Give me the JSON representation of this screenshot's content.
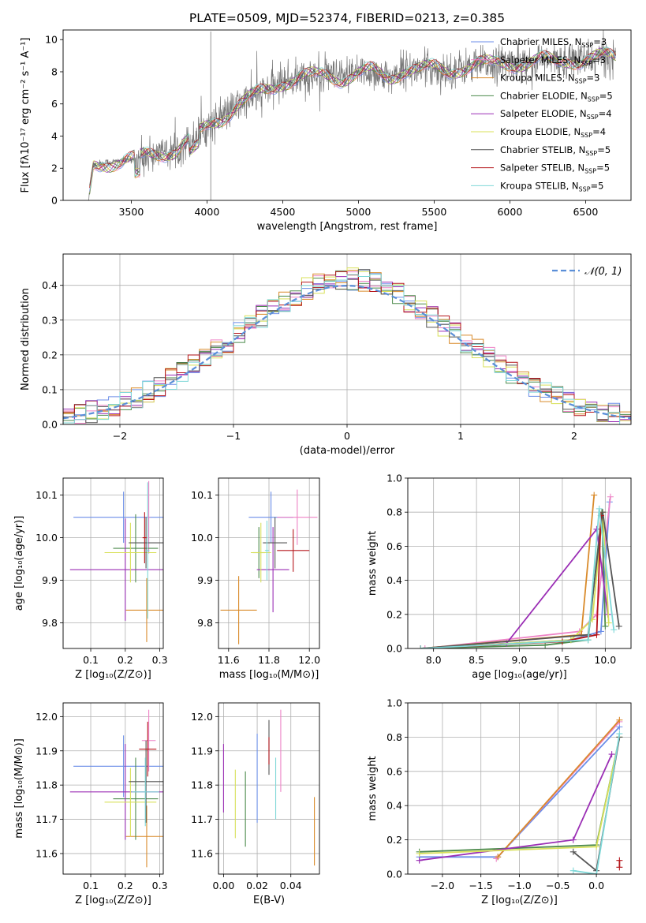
{
  "colors": [
    "#6b8ee8",
    "#ee82c6",
    "#d98a2a",
    "#4c8a4c",
    "#9b2fb5",
    "#d8e05a",
    "#555555",
    "#b5161b",
    "#7fd8d8"
  ],
  "legend_labels": [
    {
      "main": "Chabrier MILES, N",
      "sub": "SSP",
      "tail": "=3"
    },
    {
      "main": "Salpeter MILES, N",
      "sub": "SSP",
      "tail": "=3"
    },
    {
      "main": "Kroupa MILES, N",
      "sub": "SSP",
      "tail": "=3"
    },
    {
      "main": "Chabrier ELODIE, N",
      "sub": "SSP",
      "tail": "=5"
    },
    {
      "main": "Salpeter ELODIE, N",
      "sub": "SSP",
      "tail": "=4"
    },
    {
      "main": "Kroupa ELODIE, N",
      "sub": "SSP",
      "tail": "=4"
    },
    {
      "main": "Chabrier STELIB, N",
      "sub": "SSP",
      "tail": "=5"
    },
    {
      "main": "Salpeter STELIB, N",
      "sub": "SSP",
      "tail": "=5"
    },
    {
      "main": "Kroupa STELIB, N",
      "sub": "SSP",
      "tail": "=5"
    }
  ],
  "chart_data": [
    {
      "id": "spectrum",
      "type": "line",
      "title": "PLATE=0509, MJD=52374, FIBERID=0213, z=0.385",
      "xlabel": "wavelength [Angstrom, rest frame]",
      "ylabel": "Flux [fλ10⁻¹⁷ erg cm⁻² s⁻¹ A⁻¹]",
      "xlim": [
        3050,
        6800
      ],
      "ylim": [
        0,
        10.6
      ],
      "xticks": [
        "3500",
        "4000",
        "4500",
        "5000",
        "5500",
        "6000",
        "6500"
      ],
      "yticks": [
        "0",
        "2",
        "4",
        "6",
        "8",
        "10"
      ],
      "x": [
        3220,
        3250,
        3300,
        3400,
        3500,
        3550,
        3600,
        3700,
        3800,
        3850,
        3900,
        4000,
        4100,
        4200,
        4300,
        4400,
        4500,
        4600,
        4700,
        4800,
        4900,
        5000,
        5100,
        5200,
        5300,
        5400,
        5500,
        5600,
        5700,
        5800,
        5900,
        6000,
        6100,
        6200,
        6300,
        6400,
        6500,
        6600,
        6700
      ],
      "y": [
        0.1,
        2.2,
        2.3,
        2.4,
        2.5,
        2.6,
        2.8,
        3.0,
        3.1,
        3.6,
        3.7,
        4.6,
        5.2,
        5.9,
        6.4,
        6.9,
        7.4,
        7.6,
        7.7,
        7.8,
        7.6,
        7.9,
        8.0,
        7.6,
        8.2,
        8.1,
        8.2,
        8.1,
        8.3,
        8.4,
        8.5,
        8.6,
        8.5,
        8.7,
        8.6,
        8.8,
        8.7,
        8.9,
        8.9
      ]
    },
    {
      "id": "residuals",
      "type": "histogram",
      "xlabel": "(data-model)/error",
      "ylabel": "Normed distribution",
      "xlim": [
        -2.5,
        2.5
      ],
      "ylim": [
        0,
        0.49
      ],
      "xticks": [
        "−2",
        "−1",
        "0",
        "1",
        "2"
      ],
      "yticks": [
        "0.0",
        "0.1",
        "0.2",
        "0.3",
        "0.4"
      ],
      "legend": "𝒩(0, 1)",
      "reference": {
        "name": "N(0,1)",
        "mean": 0,
        "sigma": 1
      },
      "bins": {
        "start": -2.5,
        "width": 0.1,
        "count": 50
      }
    },
    {
      "id": "age_vs_z",
      "type": "errorbar",
      "xlabel": "Z [log₁₀(Z/Z⊙)]",
      "ylabel": "age  [log₁₀(age/yr)]",
      "xlim": [
        0.02,
        0.31
      ],
      "ylim": [
        9.74,
        10.14
      ],
      "xticks": [
        "0.1",
        "0.2",
        "0.3"
      ],
      "yticks": [
        "9.8",
        "9.9",
        "10.0",
        "10.1"
      ],
      "points": [
        {
          "x": 0.195,
          "xerr": 0.145,
          "y": 10.048,
          "yerr": 0.06
        },
        {
          "x": 0.268,
          "xerr": 0.004,
          "y": 10.048,
          "yerr": 0.085
        },
        {
          "x": 0.262,
          "xerr": 0.06,
          "y": 9.83,
          "yerr": 0.075
        },
        {
          "x": 0.23,
          "xerr": 0.065,
          "y": 9.975,
          "yerr": 0.08
        },
        {
          "x": 0.2,
          "xerr": 0.16,
          "y": 9.925,
          "yerr": 0.12
        },
        {
          "x": 0.215,
          "xerr": 0.075,
          "y": 9.965,
          "yerr": 0.07
        },
        {
          "x": 0.26,
          "xerr": 0.05,
          "y": 9.988,
          "yerr": 0.06
        },
        {
          "x": 0.256,
          "xerr": 0.006,
          "y": 10.0,
          "yerr": 0.06
        },
        {
          "x": 0.265,
          "xerr": 0.005,
          "y": 9.97,
          "yerr": 0.16
        }
      ]
    },
    {
      "id": "age_vs_mass",
      "type": "errorbar",
      "xlabel": "mass [log₁₀(M/M⊙)]",
      "ylabel": "",
      "xlim": [
        11.55,
        12.05
      ],
      "ylim": [
        9.74,
        10.14
      ],
      "xticks": [
        "11.6",
        "11.8",
        "12.0"
      ],
      "yticks": [
        "9.8",
        "9.9",
        "10.0",
        "10.1"
      ],
      "points": [
        {
          "x": 11.81,
          "xerr": 0.11,
          "y": 10.048,
          "yerr": 0.06
        },
        {
          "x": 11.94,
          "xerr": 0.1,
          "y": 10.048,
          "yerr": 0.065
        },
        {
          "x": 11.65,
          "xerr": 0.09,
          "y": 9.83,
          "yerr": 0.08
        },
        {
          "x": 11.75,
          "xerr": 0.03,
          "y": 9.965,
          "yerr": 0.06
        },
        {
          "x": 11.82,
          "xerr": 0.08,
          "y": 9.925,
          "yerr": 0.1
        },
        {
          "x": 11.76,
          "xerr": 0.05,
          "y": 9.965,
          "yerr": 0.07
        },
        {
          "x": 11.83,
          "xerr": 0.06,
          "y": 9.988,
          "yerr": 0.06
        },
        {
          "x": 11.92,
          "xerr": 0.08,
          "y": 9.97,
          "yerr": 0.05
        },
        {
          "x": 11.79,
          "xerr": 0.01,
          "y": 9.97,
          "yerr": 0.07
        }
      ]
    },
    {
      "id": "weight_vs_age",
      "type": "line",
      "xlabel": "age  [log₁₀(age/yr)]",
      "ylabel": "mass weight",
      "xlim": [
        7.7,
        10.3
      ],
      "ylim": [
        0,
        1.0
      ],
      "xticks": [
        "8.0",
        "8.5",
        "9.0",
        "9.5",
        "10.0"
      ],
      "yticks": [
        "0.0",
        "0.2",
        "0.4",
        "0.6",
        "0.8",
        "1.0"
      ],
      "series": [
        {
          "x": [
            7.85,
            9.6,
            9.95,
            10.05
          ],
          "y": [
            0.0,
            0.05,
            0.1,
            0.86
          ]
        },
        {
          "x": [
            7.9,
            9.7,
            9.9,
            10.06
          ],
          "y": [
            0.0,
            0.1,
            0.2,
            0.89
          ]
        },
        {
          "x": [
            7.85,
            9.72,
            9.87
          ],
          "y": [
            0.0,
            0.08,
            0.9
          ]
        },
        {
          "x": [
            7.85,
            9.3,
            9.8,
            9.96,
            10.0
          ],
          "y": [
            0.0,
            0.02,
            0.05,
            0.8,
            0.13
          ]
        },
        {
          "x": [
            7.85,
            8.85,
            9.9,
            10.03
          ],
          "y": [
            0.0,
            0.03,
            0.7,
            0.2
          ]
        },
        {
          "x": [
            7.85,
            9.6,
            9.85,
            9.97,
            10.04
          ],
          "y": [
            0.0,
            0.05,
            0.17,
            0.8,
            0.15
          ]
        },
        {
          "x": [
            7.85,
            9.8,
            9.97,
            10.16
          ],
          "y": [
            0.0,
            0.08,
            0.8,
            0.13
          ]
        },
        {
          "x": [
            7.85,
            9.5,
            9.9,
            9.95
          ],
          "y": [
            0.0,
            0.04,
            0.08,
            0.78
          ]
        },
        {
          "x": [
            7.85,
            9.8,
            9.93,
            10.1
          ],
          "y": [
            0.0,
            0.05,
            0.82,
            0.11
          ]
        }
      ]
    },
    {
      "id": "mass_vs_z",
      "type": "errorbar",
      "xlabel": "Z [log₁₀(Z/Z⊙)]",
      "ylabel": "mass [log₁₀(M/M⊙)]",
      "xlim": [
        0.02,
        0.31
      ],
      "ylim": [
        11.54,
        12.04
      ],
      "xticks": [
        "0.1",
        "0.2",
        "0.3"
      ],
      "yticks": [
        "11.6",
        "11.7",
        "11.8",
        "11.9",
        "12.0"
      ],
      "points": [
        {
          "x": 0.195,
          "xerr": 0.145,
          "y": 11.855,
          "yerr": 0.09
        },
        {
          "x": 0.268,
          "xerr": 0.02,
          "y": 11.93,
          "yerr": 0.09
        },
        {
          "x": 0.262,
          "xerr": 0.06,
          "y": 11.65,
          "yerr": 0.09
        },
        {
          "x": 0.23,
          "xerr": 0.065,
          "y": 11.76,
          "yerr": 0.12
        },
        {
          "x": 0.2,
          "xerr": 0.16,
          "y": 11.78,
          "yerr": 0.14
        },
        {
          "x": 0.215,
          "xerr": 0.075,
          "y": 11.75,
          "yerr": 0.1
        },
        {
          "x": 0.26,
          "xerr": 0.05,
          "y": 11.81,
          "yerr": 0.12
        },
        {
          "x": 0.265,
          "xerr": 0.025,
          "y": 11.905,
          "yerr": 0.08
        },
        {
          "x": 0.258,
          "xerr": 0.04,
          "y": 11.78,
          "yerr": 0.1
        }
      ]
    },
    {
      "id": "mass_vs_ebv",
      "type": "errorbar",
      "xlabel": "E(B-V)",
      "ylabel": "",
      "xlim": [
        -0.003,
        0.057
      ],
      "ylim": [
        11.54,
        12.04
      ],
      "xticks": [
        "0.00",
        "0.02",
        "0.04"
      ],
      "yticks": [
        "11.6",
        "11.7",
        "11.8",
        "11.9",
        "12.0"
      ],
      "points": [
        {
          "x": 0.02,
          "xerr": 0,
          "y": 11.82,
          "yerr": 0.13
        },
        {
          "x": 0.034,
          "xerr": 0,
          "y": 11.9,
          "yerr": 0.12
        },
        {
          "x": 0.054,
          "xerr": 0,
          "y": 11.665,
          "yerr": 0.1
        },
        {
          "x": 0.013,
          "xerr": 0,
          "y": 11.73,
          "yerr": 0.11
        },
        {
          "x": 0.0,
          "xerr": 0,
          "y": 11.82,
          "yerr": 0.1
        },
        {
          "x": 0.007,
          "xerr": 0,
          "y": 11.745,
          "yerr": 0.1
        },
        {
          "x": 0.027,
          "xerr": 0,
          "y": 11.91,
          "yerr": 0.08
        },
        {
          "x": 0.027,
          "xerr": 0,
          "y": 11.9,
          "yerr": 0.04
        },
        {
          "x": 0.031,
          "xerr": 0,
          "y": 11.79,
          "yerr": 0.09
        }
      ]
    },
    {
      "id": "weight_vs_z",
      "type": "line",
      "xlabel": "Z [log₁₀(Z/Z⊙)]",
      "ylabel": "mass weight",
      "xlim": [
        -2.45,
        0.45
      ],
      "ylim": [
        0,
        1.0
      ],
      "xticks": [
        "−2.0",
        "−1.5",
        "−1.0",
        "−0.5",
        "0.0"
      ],
      "yticks": [
        "0.0",
        "0.2",
        "0.4",
        "0.6",
        "0.8",
        "1.0"
      ],
      "series": [
        {
          "x": [
            -2.3,
            -1.28,
            0.3
          ],
          "y": [
            0.1,
            0.1,
            0.86
          ]
        },
        {
          "x": [
            -1.3,
            0.3
          ],
          "y": [
            0.09,
            0.89
          ]
        },
        {
          "x": [
            -1.28,
            0.3
          ],
          "y": [
            0.1,
            0.9
          ]
        },
        {
          "x": [
            -2.3,
            0.0,
            0.3
          ],
          "y": [
            0.13,
            0.17,
            0.8
          ]
        },
        {
          "x": [
            -2.3,
            -0.3,
            0.2
          ],
          "y": [
            0.08,
            0.2,
            0.7
          ]
        },
        {
          "x": [
            -2.3,
            0.0,
            0.3
          ],
          "y": [
            0.12,
            0.16,
            0.8
          ]
        },
        {
          "x": [
            -0.3,
            0.0,
            0.3
          ],
          "y": [
            0.13,
            0.02,
            0.8
          ]
        },
        {
          "x": [
            0.3,
            0.3
          ],
          "y": [
            0.08,
            0.04
          ]
        },
        {
          "x": [
            -0.3,
            0.0,
            0.3
          ],
          "y": [
            0.02,
            0.0,
            0.82
          ]
        }
      ]
    }
  ]
}
